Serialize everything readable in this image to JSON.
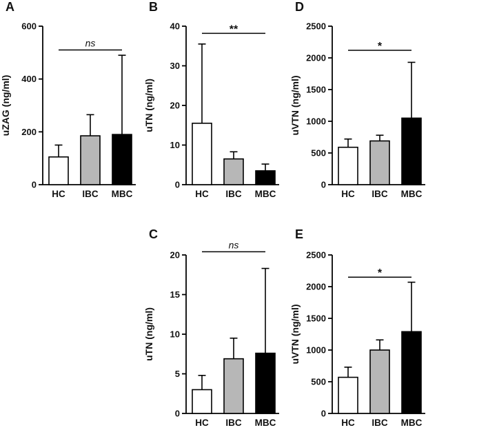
{
  "chart_data": [
    {
      "panel_label": "A",
      "type": "bar",
      "categories": [
        "HC",
        "IBC",
        "MBC"
      ],
      "values": [
        105,
        185,
        190
      ],
      "error_top": [
        150,
        265,
        490
      ],
      "bar_colors": [
        "#ffffff",
        "#b7b7b7",
        "#000000"
      ],
      "title": "",
      "xlabel": "",
      "ylabel": "uZAG (ng/ml)",
      "ylim": [
        0,
        600
      ],
      "yticks": [
        0,
        200,
        400,
        600
      ],
      "significance": {
        "label": "ns",
        "italic": true,
        "from": 0,
        "to": 2,
        "y": 510
      }
    },
    {
      "panel_label": "B",
      "type": "bar",
      "categories": [
        "HC",
        "IBC",
        "MBC"
      ],
      "values": [
        15.5,
        6.5,
        3.5
      ],
      "error_top": [
        35.5,
        8.3,
        5.2
      ],
      "bar_colors": [
        "#ffffff",
        "#b7b7b7",
        "#000000"
      ],
      "title": "",
      "xlabel": "",
      "ylabel": "uTN (ng/ml)",
      "ylim": [
        0,
        40
      ],
      "yticks": [
        0,
        10,
        20,
        30,
        40
      ],
      "significance": {
        "label": "**",
        "italic": false,
        "from": 0,
        "to": 2,
        "y": 38.2
      }
    },
    {
      "panel_label": "D",
      "type": "bar",
      "categories": [
        "HC",
        "IBC",
        "MBC"
      ],
      "values": [
        590,
        690,
        1050
      ],
      "error_top": [
        720,
        780,
        1930
      ],
      "bar_colors": [
        "#ffffff",
        "#b7b7b7",
        "#000000"
      ],
      "title": "",
      "xlabel": "",
      "ylabel": "uVTN (ng/ml)",
      "ylim": [
        0,
        2500
      ],
      "yticks": [
        0,
        500,
        1000,
        1500,
        2000,
        2500
      ],
      "significance": {
        "label": "*",
        "italic": false,
        "from": 0,
        "to": 2,
        "y": 2120
      }
    },
    {
      "panel_label": "C",
      "type": "bar",
      "categories": [
        "HC",
        "IBC",
        "MBC"
      ],
      "values": [
        3.0,
        6.9,
        7.6
      ],
      "error_top": [
        4.8,
        9.5,
        18.3
      ],
      "bar_colors": [
        "#ffffff",
        "#b7b7b7",
        "#000000"
      ],
      "title": "",
      "xlabel": "",
      "ylabel": "uTN (ng/ml)",
      "ylim": [
        0,
        20
      ],
      "yticks": [
        0,
        5,
        10,
        15,
        20
      ],
      "significance": {
        "label": "ns",
        "italic": true,
        "from": 0,
        "to": 2,
        "y": 20.4
      }
    },
    {
      "panel_label": "E",
      "type": "bar",
      "categories": [
        "HC",
        "IBC",
        "MBC"
      ],
      "values": [
        570,
        1000,
        1290
      ],
      "error_top": [
        730,
        1160,
        2070
      ],
      "bar_colors": [
        "#ffffff",
        "#b7b7b7",
        "#000000"
      ],
      "title": "",
      "xlabel": "",
      "ylabel": "uVTN (ng/ml)",
      "ylim": [
        0,
        2500
      ],
      "yticks": [
        0,
        500,
        1000,
        1500,
        2000,
        2500
      ],
      "significance": {
        "label": "*",
        "italic": false,
        "from": 0,
        "to": 2,
        "y": 2150
      }
    }
  ]
}
